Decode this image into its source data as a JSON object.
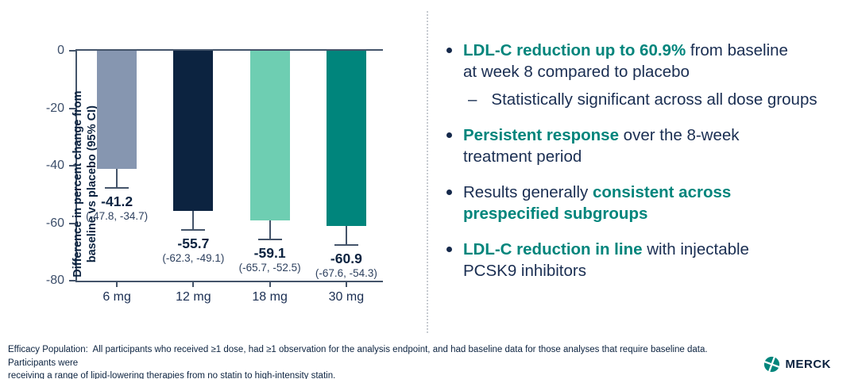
{
  "chart_data": {
    "type": "bar",
    "title": "",
    "xlabel": "",
    "ylabel": "Difference in percent change from\nbaseline vs placebo (95% CI)",
    "categories": [
      "6 mg",
      "12 mg",
      "18 mg",
      "30 mg"
    ],
    "values": [
      -41.2,
      -55.7,
      -59.1,
      -60.9
    ],
    "ci_low": [
      -47.8,
      -62.3,
      -65.7,
      -67.6
    ],
    "ci_high": [
      -34.7,
      -49.1,
      -52.5,
      -54.3
    ],
    "value_labels": [
      "-41.2",
      "-55.7",
      "-59.1",
      "-60.9"
    ],
    "ci_labels": [
      "(-47.8, -34.7)",
      "(-62.3, -49.1)",
      "(-65.7, -52.5)",
      "(-67.6, -54.3)"
    ],
    "bar_colors": [
      "#8696B0",
      "#0C2340",
      "#6ECEB2",
      "#00857C"
    ],
    "yticks": [
      0,
      -20,
      -40,
      -60,
      -80
    ],
    "ylim": [
      0,
      -80
    ],
    "grid": false,
    "legend": "none",
    "error_bars": "lower-95ci"
  },
  "bullets": [
    {
      "segments": [
        {
          "t": "LDL-C reduction up to 60.9% ",
          "teal_bold": true
        },
        {
          "t": "from baseline\nat week 8 compared to placebo",
          "teal_bold": false
        }
      ],
      "sub_marker": "–",
      "sub": "Statistically significant across all dose groups"
    },
    {
      "segments": [
        {
          "t": "Persistent response ",
          "teal_bold": true
        },
        {
          "t": "over the 8-week\ntreatment period",
          "teal_bold": false
        }
      ]
    },
    {
      "segments": [
        {
          "t": "Results generally ",
          "teal_bold": false
        },
        {
          "t": "consistent across\nprespecified subgroups",
          "teal_bold": true
        }
      ]
    },
    {
      "segments": [
        {
          "t": "LDL-C reduction in line ",
          "teal_bold": true
        },
        {
          "t": "with injectable\nPCSK9 inhibitors",
          "teal_bold": false
        }
      ]
    }
  ],
  "footnote": "Efficacy Population:  All participants who received ≥1 dose, had ≥1 observation for the analysis endpoint, and had baseline data for those analyses that require baseline data. Participants were\nreceiving a range of lipid-lowering therapies from no statin to high-intensity statin.",
  "logo": {
    "text": "MERCK"
  },
  "colors": {
    "teal": "#00857C",
    "navy": "#0C2340",
    "body_text": "#1A2E52",
    "axis": "#44546A",
    "mint": "#6ECEB2",
    "gray_blue": "#8696B0",
    "divider": "#C7CBD1"
  }
}
